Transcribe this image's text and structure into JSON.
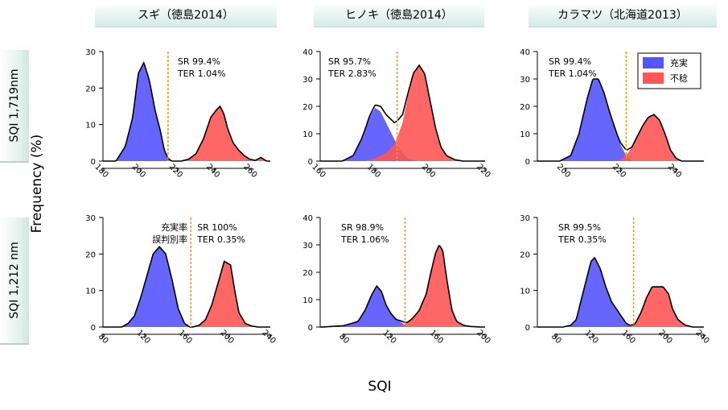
{
  "figure": {
    "xlabel": "SQI",
    "ylabel": "Frequency (%)",
    "columns": [
      "スギ（徳島2014）",
      "ヒノキ（徳島2014）",
      "カラマツ（北海道2013）"
    ],
    "rows": [
      "SQI 1,719nm",
      "SQI 1,212 nm"
    ],
    "legend": [
      {
        "label": "充実",
        "color": "#5555ff"
      },
      {
        "label": "不稔",
        "color": "#ff5555"
      }
    ],
    "legend_position": "top-right (upper right panel)",
    "colors": {
      "filled": "#5555ff",
      "sterile": "#ff5555",
      "threshold": "#f0a000",
      "total": "#000000"
    },
    "metric_labels": {
      "sr_jp": "充実率",
      "ter_jp": "誤判別率"
    }
  },
  "chart_data": [
    {
      "type": "area",
      "row": "SQI 1,719nm",
      "column": "スギ（徳島2014）",
      "xlim": [
        180,
        270
      ],
      "ylim": [
        0,
        30
      ],
      "xticks": [
        180,
        200,
        220,
        240,
        260
      ],
      "yticks": [
        0,
        10,
        20,
        30
      ],
      "threshold": 215,
      "sr_text": "SR   99.4%",
      "ter_text": "TER 1.04%",
      "series": [
        {
          "name": "充実",
          "x": [
            187,
            192,
            196,
            199,
            202,
            205,
            208,
            211,
            213,
            215,
            217
          ],
          "values": [
            0,
            4,
            12,
            24,
            27,
            22,
            14,
            8,
            3,
            0.8,
            0
          ]
        },
        {
          "name": "不稔",
          "x": [
            222,
            226,
            230,
            234,
            238,
            241,
            243,
            245,
            247,
            250,
            253,
            256,
            259,
            262,
            265,
            268
          ],
          "values": [
            0,
            0.5,
            2,
            6,
            12,
            14,
            15,
            13,
            9,
            5,
            3,
            1.5,
            0.5,
            0.2,
            1,
            0
          ]
        }
      ]
    },
    {
      "type": "area",
      "row": "SQI 1,719nm",
      "column": "ヒノキ（徳島2014）",
      "xlim": [
        160,
        220
      ],
      "ylim": [
        0,
        40
      ],
      "xticks": [
        160,
        180,
        200,
        220
      ],
      "yticks": [
        0,
        10,
        20,
        30,
        40
      ],
      "threshold": 188,
      "sr_text": "SR   95.7%",
      "ter_text": "TER 2.83%",
      "series": [
        {
          "name": "充実",
          "x": [
            168,
            172,
            175,
            178,
            180,
            182,
            184,
            186,
            188,
            190,
            192,
            195
          ],
          "values": [
            0,
            2,
            8,
            16,
            19.5,
            18,
            14,
            10,
            6,
            3,
            1,
            0
          ]
        },
        {
          "name": "不稔",
          "x": [
            176,
            180,
            184,
            187,
            190,
            192,
            194,
            196,
            198,
            200,
            202,
            204,
            206,
            209,
            212
          ],
          "values": [
            0,
            1,
            3,
            6,
            14,
            24,
            32,
            35,
            32,
            22,
            12,
            5,
            2,
            0.5,
            0
          ]
        }
      ]
    },
    {
      "type": "area",
      "row": "SQI 1,719nm",
      "column": "カラマツ（北海道2013）",
      "xlim": [
        190,
        250
      ],
      "ylim": [
        0,
        40
      ],
      "xticks": [
        200,
        220,
        240
      ],
      "yticks": [
        0,
        10,
        20,
        30,
        40
      ],
      "threshold": 222,
      "sr_text": "SR   99.4%",
      "ter_text": "TER 1.04%",
      "series": [
        {
          "name": "充実",
          "x": [
            198,
            202,
            205,
            208,
            210,
            212,
            214,
            216,
            218,
            220,
            222,
            224
          ],
          "values": [
            0,
            2,
            10,
            23,
            30,
            30,
            25,
            18,
            12,
            6,
            2,
            0
          ]
        },
        {
          "name": "不稔",
          "x": [
            219,
            222,
            224,
            226,
            228,
            230,
            232,
            234,
            236,
            238,
            240,
            242
          ],
          "values": [
            0,
            2,
            5,
            9,
            13,
            16,
            17,
            15,
            10,
            4,
            1,
            0
          ]
        }
      ]
    },
    {
      "type": "area",
      "row": "SQI 1,212 nm",
      "column": "スギ（徳島2014）",
      "xlim": [
        80,
        240
      ],
      "ylim": [
        0,
        30
      ],
      "xticks": [
        80,
        120,
        160,
        200,
        240
      ],
      "yticks": [
        0,
        10,
        20,
        30
      ],
      "threshold": 164,
      "sr_text": "SR   100%",
      "ter_text": "TER 0.35%",
      "series": [
        {
          "name": "充実",
          "x": [
            98,
            104,
            110,
            116,
            122,
            128,
            134,
            140,
            146,
            152,
            158,
            163
          ],
          "values": [
            0,
            1,
            3,
            8,
            14,
            20,
            22,
            20,
            13,
            5,
            1,
            0
          ]
        },
        {
          "name": "不稔",
          "x": [
            166,
            172,
            178,
            184,
            190,
            196,
            202,
            206,
            210,
            216,
            222,
            228
          ],
          "values": [
            0,
            0.5,
            2,
            6,
            12,
            18,
            17,
            10,
            4,
            1,
            0.3,
            0
          ]
        }
      ]
    },
    {
      "type": "area",
      "row": "SQI 1,212 nm",
      "column": "ヒノキ（徳島2014）",
      "xlim": [
        60,
        200
      ],
      "ylim": [
        0,
        40
      ],
      "xticks": [
        80,
        120,
        160,
        200
      ],
      "yticks": [
        0,
        10,
        20,
        30,
        40
      ],
      "threshold": 132,
      "sr_text": "SR   98.9%",
      "ter_text": "TER 1.06%",
      "series": [
        {
          "name": "充実",
          "x": [
            62,
            80,
            92,
            98,
            104,
            108,
            112,
            116,
            120,
            124,
            128,
            134
          ],
          "values": [
            0,
            0.5,
            2,
            6,
            12,
            15,
            13,
            8,
            5,
            3,
            2,
            0
          ]
        },
        {
          "name": "不稔",
          "x": [
            126,
            132,
            138,
            144,
            150,
            154,
            158,
            161,
            164,
            168,
            172,
            176,
            182,
            188,
            196
          ],
          "values": [
            0,
            1,
            3,
            6,
            12,
            20,
            27,
            30,
            28,
            16,
            6,
            2,
            0.6,
            0.2,
            0
          ]
        }
      ]
    },
    {
      "type": "area",
      "row": "SQI 1,212 nm",
      "column": "カラマツ（北海道2013）",
      "xlim": [
        60,
        240
      ],
      "ylim": [
        0,
        30
      ],
      "xticks": [
        80,
        120,
        160,
        200,
        240
      ],
      "yticks": [
        0,
        10,
        20,
        30
      ],
      "threshold": 164,
      "sr_text": "SR   99.5%",
      "ter_text": "TER 0.35%",
      "series": [
        {
          "name": "充実",
          "x": [
            88,
            96,
            102,
            108,
            114,
            118,
            122,
            128,
            134,
            140,
            148,
            156,
            164
          ],
          "values": [
            0,
            0.5,
            2,
            8,
            14,
            18,
            19,
            16,
            11,
            7,
            4,
            1,
            0
          ]
        },
        {
          "name": "不稔",
          "x": [
            160,
            166,
            172,
            178,
            184,
            190,
            196,
            202,
            206,
            212,
            220,
            228
          ],
          "values": [
            0,
            1,
            4,
            8,
            11,
            11,
            11,
            9,
            5,
            2,
            0.5,
            0
          ]
        }
      ]
    }
  ]
}
